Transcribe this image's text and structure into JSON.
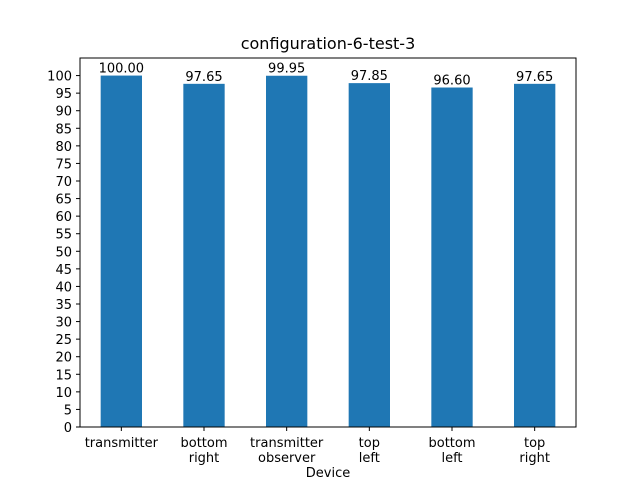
{
  "chart_data": {
    "type": "bar",
    "title": "configuration-6-test-3",
    "x_label": "Device",
    "categories": [
      "transmitter",
      "bottom\nright",
      "transmitter\nobserver",
      "top\nleft",
      "bottom\nleft",
      "top\nright"
    ],
    "values": [
      100,
      97.65,
      99.95,
      97.85,
      96.6,
      97.65
    ],
    "value_labels": [
      "100.00",
      "97.65",
      "99.95",
      "97.85",
      "96.60",
      "97.65"
    ],
    "color": "#1f77b4",
    "ylim": [
      0,
      105
    ],
    "yticks": [
      0,
      5,
      10,
      15,
      20,
      25,
      30,
      35,
      40,
      45,
      50,
      55,
      60,
      65,
      70,
      75,
      80,
      85,
      90,
      95,
      100
    ],
    "grid": false
  }
}
